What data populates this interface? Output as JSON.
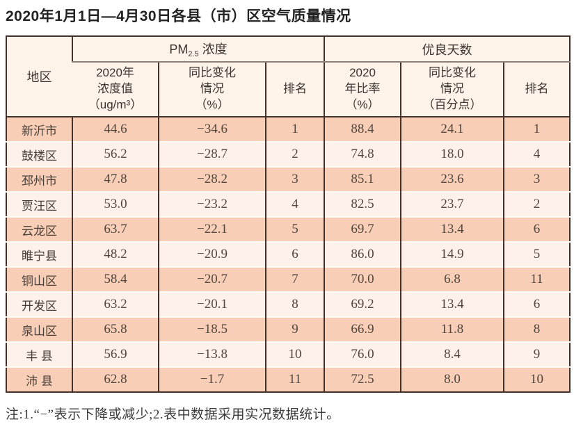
{
  "title": "2020年1月1日—4月30日各县（市）区空气质量情况",
  "table": {
    "region_header": "地区",
    "group_headers": {
      "pm25": {
        "prefix": "PM",
        "sub": "2.5",
        "suffix": " 浓度"
      },
      "good_days": "优良天数"
    },
    "sub_headers": {
      "pm_value": "2020年\n浓度值\n（ug/m³）",
      "pm_change": "同比变化\n情况\n（%）",
      "pm_rank": "排名",
      "days_ratio": "2020\n年比率\n（%）",
      "days_change": "同比变化\n情况\n（百分点）",
      "days_rank": "排名"
    },
    "columns": [
      "region",
      "pm_value",
      "pm_change",
      "pm_rank",
      "days_ratio",
      "days_change",
      "days_rank"
    ],
    "rows": [
      {
        "region": "新沂市",
        "pm_value": "44.6",
        "pm_change": "−34.6",
        "pm_rank": "1",
        "days_ratio": "88.4",
        "days_change": "24.1",
        "days_rank": "1"
      },
      {
        "region": "鼓楼区",
        "pm_value": "56.2",
        "pm_change": "−28.7",
        "pm_rank": "2",
        "days_ratio": "74.8",
        "days_change": "18.0",
        "days_rank": "4"
      },
      {
        "region": "邳州市",
        "pm_value": "47.8",
        "pm_change": "−28.2",
        "pm_rank": "3",
        "days_ratio": "85.1",
        "days_change": "23.6",
        "days_rank": "3"
      },
      {
        "region": "贾汪区",
        "pm_value": "53.0",
        "pm_change": "−23.2",
        "pm_rank": "4",
        "days_ratio": "82.5",
        "days_change": "23.7",
        "days_rank": "2"
      },
      {
        "region": "云龙区",
        "pm_value": "63.7",
        "pm_change": "−22.1",
        "pm_rank": "5",
        "days_ratio": "69.7",
        "days_change": "13.4",
        "days_rank": "6"
      },
      {
        "region": "睢宁县",
        "pm_value": "48.2",
        "pm_change": "−20.9",
        "pm_rank": "6",
        "days_ratio": "86.0",
        "days_change": "14.9",
        "days_rank": "5"
      },
      {
        "region": "铜山区",
        "pm_value": "58.4",
        "pm_change": "−20.7",
        "pm_rank": "7",
        "days_ratio": "70.0",
        "days_change": "6.8",
        "days_rank": "11"
      },
      {
        "region": "开发区",
        "pm_value": "63.2",
        "pm_change": "−20.1",
        "pm_rank": "8",
        "days_ratio": "69.2",
        "days_change": "13.4",
        "days_rank": "6"
      },
      {
        "region": "泉山区",
        "pm_value": "65.8",
        "pm_change": "−18.5",
        "pm_rank": "9",
        "days_ratio": "66.9",
        "days_change": "11.8",
        "days_rank": "8"
      },
      {
        "region": "丰 县",
        "pm_value": "56.9",
        "pm_change": "−13.8",
        "pm_rank": "10",
        "days_ratio": "76.0",
        "days_change": "8.4",
        "days_rank": "9"
      },
      {
        "region": "沛 县",
        "pm_value": "62.8",
        "pm_change": "−1.7",
        "pm_rank": "11",
        "days_ratio": "72.5",
        "days_change": "8.0",
        "days_rank": "10"
      }
    ]
  },
  "note": "注:1.“−”表示下降或减少;2.表中数据采用实况数据统计。",
  "colors": {
    "row_odd": "#f8ceb7",
    "row_even": "#fdf1e9",
    "header_bg": "#fdf3e8",
    "border_dark": "#43302a",
    "border_gray": "#8b7f77"
  }
}
